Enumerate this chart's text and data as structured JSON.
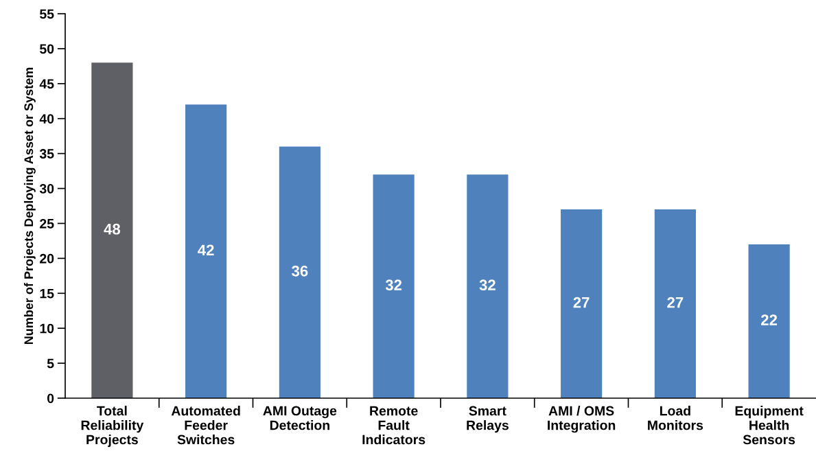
{
  "chart_data": {
    "type": "bar",
    "ylabel": "Number of Projects Deploying Asset or System",
    "categories": [
      "Total\nReliability\nProjects",
      "Automated\nFeeder\nSwitches",
      "AMI Outage\nDetection",
      "Remote\nFault\nIndicators",
      "Smart\nRelays",
      "AMI / OMS\nIntegration",
      "Load\nMonitors",
      "Equipment\nHealth\nSensors"
    ],
    "values": [
      48,
      42,
      36,
      32,
      32,
      27,
      27,
      22
    ],
    "colors": [
      "#5f5f66",
      "#4f81bd",
      "#4f81bd",
      "#4f81bd",
      "#4f81bd",
      "#4f81bd",
      "#4f81bd",
      "#4f81bd"
    ],
    "ylim": [
      0,
      55
    ],
    "yticks": [
      0,
      5,
      10,
      15,
      20,
      25,
      30,
      35,
      40,
      45,
      50,
      55
    ],
    "data_labels": true,
    "grid": false,
    "legend": false
  }
}
